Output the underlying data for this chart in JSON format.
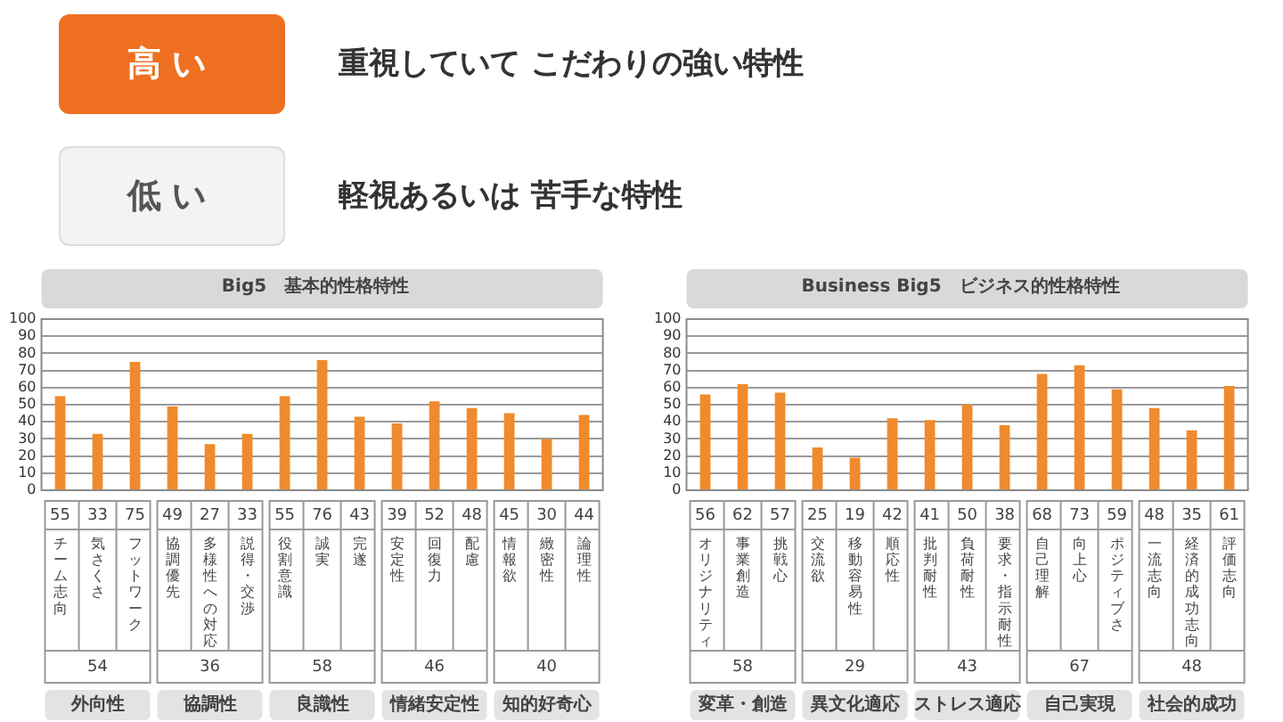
{
  "chart_data": [
    {
      "type": "other",
      "annotations": [
        "高い",
        "重視していて こだわりの強い特性",
        "低い",
        "軽視あるいは 苦手な特性"
      ]
    },
    {
      "type": "bar",
      "title": "Big5　基本的性格特性",
      "categories": [
        "チーム志向",
        "気さくさ",
        "フットワーク",
        "協調優先",
        "多様性への対応",
        "説得・交渉",
        "役割意識",
        "誠実",
        "完遂",
        "安定性",
        "回復力",
        "配慮",
        "情報欲",
        "緻密性",
        "論理性"
      ],
      "values": [
        55,
        33,
        75,
        49,
        27,
        33,
        55,
        76,
        43,
        39,
        52,
        48,
        45,
        30,
        44
      ],
      "color": "#f08a2c",
      "ylim": [
        0,
        100
      ],
      "yticks": [
        0,
        10,
        20,
        30,
        40,
        50,
        60,
        70,
        80,
        90,
        100
      ],
      "grid": "y",
      "legend": false,
      "data_labels": true,
      "annotations": [
        "外向性",
        "協調性",
        "良識性",
        "情緒安定性",
        "知的好奇心",
        "54",
        "36",
        "58",
        "46",
        "40"
      ]
    },
    {
      "type": "bar",
      "title": "Business Big5　ビジネス的性格特性",
      "categories": [
        "オリジナリティ",
        "事業創造",
        "挑戦心",
        "交流欲",
        "移動容易性",
        "順応性",
        "批判耐性",
        "負荷耐性",
        "要求・指示耐性",
        "自己理解",
        "向上心",
        "ポジティブさ",
        "一流志向",
        "経済的成功志向",
        "評価志向"
      ],
      "values": [
        56,
        62,
        57,
        25,
        19,
        42,
        41,
        50,
        38,
        68,
        73,
        59,
        48,
        35,
        61
      ],
      "color": "#f08a2c",
      "ylim": [
        0,
        100
      ],
      "yticks": [
        0,
        10,
        20,
        30,
        40,
        50,
        60,
        70,
        80,
        90,
        100
      ],
      "grid": "y",
      "legend": false,
      "data_labels": true,
      "annotations": [
        "変革・創造",
        "異文化適応",
        "ストレス適応",
        "自己実現",
        "社会的成功",
        "58",
        "29",
        "43",
        "67",
        "48"
      ]
    }
  ]
}
